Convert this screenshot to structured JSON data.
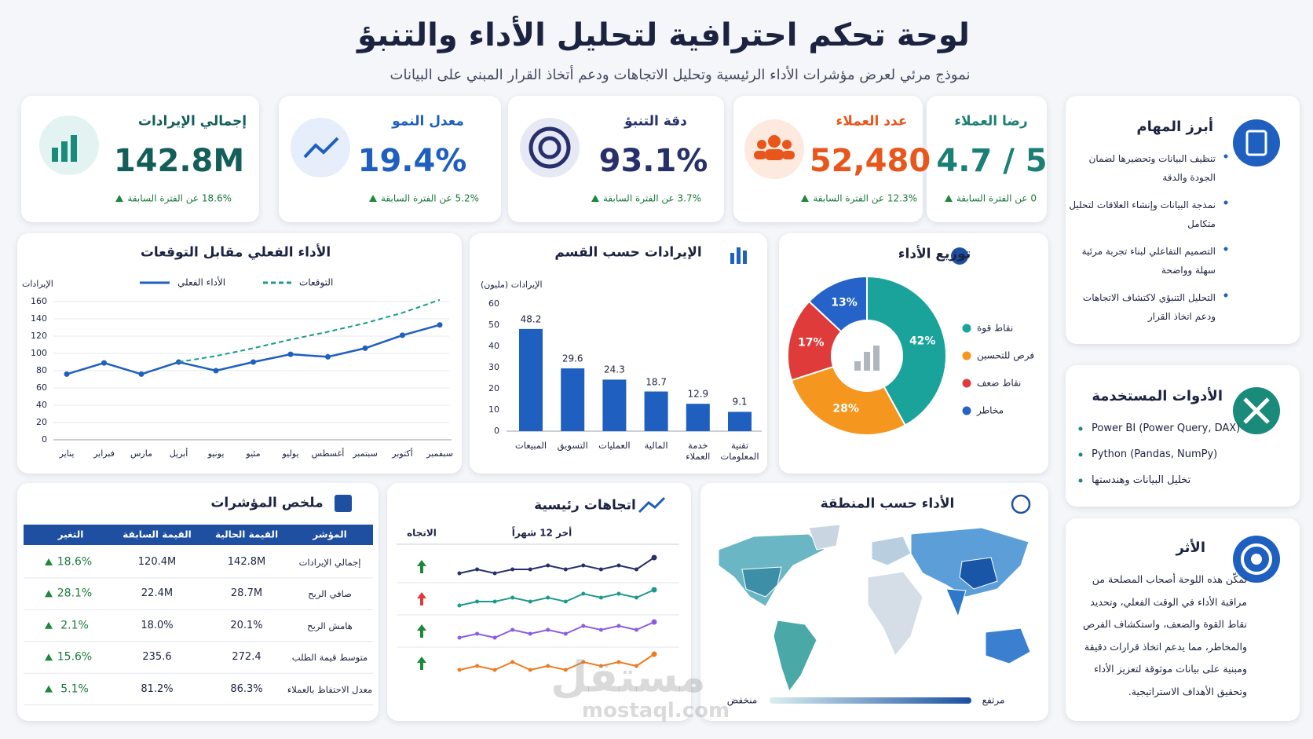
{
  "header": {
    "title": "لوحة تحكم احترافية لتحليل الأداء والتنبؤ",
    "subtitle": "نموذج مرئي لعرض مؤشرات الأداء الرئيسية وتحليل الاتجاهات ودعم أتخاذ القرار المبني على البيانات"
  },
  "kpis": [
    {
      "title": "إجمالي الإيرادات",
      "value": "142.8M",
      "change": "18.6% عن الفترة السابقة",
      "color": "#145e5a"
    },
    {
      "title": "معدل النمو",
      "value": "19.4%",
      "change": "5.2% عن الفترة السابقة",
      "color": "#1e5fbf"
    },
    {
      "title": "دقة التنبؤ",
      "value": "93.1%",
      "change": "3.7% عن الفترة السابقة",
      "color": "#27306b"
    },
    {
      "title": "عدد العملاء",
      "value": "52,480",
      "change": "12.3% عن الفترة السابقة",
      "color": "#e8561c"
    },
    {
      "title": "رضا العملاء",
      "value": "4.7 / 5",
      "change": "0 عن الفترة السابقة",
      "color": "#1a7f74"
    }
  ],
  "chart_data": [
    {
      "type": "line",
      "title": "الأداء الفعلي مقابل التوقعات",
      "y_label": "الإيرادات",
      "categories": [
        "يناير",
        "فبراير",
        "مارس",
        "أبريل",
        "يونيو",
        "مئيو",
        "يوليو",
        "أغسطس",
        "سبتمبر",
        "أكتوبر",
        "سبفمبر"
      ],
      "series": [
        {
          "name": "الأداء الفعلي",
          "color": "#1e5fbf",
          "dashed": false,
          "values": [
            76,
            89,
            76,
            90,
            80,
            90,
            99,
            96,
            106,
            121,
            133
          ]
        },
        {
          "name": "التوقعات",
          "color": "#1a9b8a",
          "dashed": true,
          "values": [
            null,
            null,
            null,
            90,
            97,
            106,
            116,
            125,
            135,
            147,
            162
          ]
        }
      ],
      "ylim": [
        0,
        160
      ],
      "yticks": [
        0,
        20,
        40,
        60,
        80,
        100,
        120,
        140,
        160
      ],
      "grid": true
    },
    {
      "type": "bar",
      "title": "الإيرادات حسب القسم",
      "y_label": "الإيرادات (مليون)",
      "categories": [
        "المبيعات",
        "التسويق",
        "العمليات",
        "المالية",
        "خدمة العملاء",
        "تقنية المعلومات"
      ],
      "values": [
        48.2,
        29.6,
        24.3,
        18.7,
        12.9,
        9.1
      ],
      "color": "#1e5fbf",
      "ylim": [
        0,
        60
      ],
      "yticks": [
        0,
        10,
        20,
        30,
        40,
        50,
        60
      ],
      "grid": false
    },
    {
      "type": "pie",
      "title": "توزيع الأداء",
      "categories": [
        "نقاط قوة",
        "فرص للتحسين",
        "نقاط ضعف",
        "مخاطر"
      ],
      "values": [
        42,
        28,
        17,
        13
      ],
      "value_labels": [
        "42%",
        "28%",
        "17%",
        "13%"
      ],
      "colors": [
        "#1aa39a",
        "#f5961e",
        "#e03b3b",
        "#2563c9"
      ]
    },
    {
      "type": "sparkline",
      "title": "اتجاهات رئيسية",
      "subtitle": "أخر 12 شهراً",
      "direction_label": "الاتجاه",
      "ylim": [
        2,
        8
      ],
      "series": [
        {
          "color": "#27306b",
          "arrow_color": "#1a8a3a",
          "values": [
            3,
            4,
            3,
            4,
            4,
            5,
            4,
            5,
            4,
            5,
            4,
            7
          ]
        },
        {
          "color": "#1a9b8a",
          "arrow_color": "#e03b3b",
          "values": [
            3,
            4,
            4,
            5,
            4,
            5,
            4,
            6,
            5,
            6,
            5,
            7
          ]
        },
        {
          "color": "#8a5ce6",
          "arrow_color": "#1a8a3a",
          "values": [
            3,
            4,
            3,
            5,
            4,
            5,
            4,
            6,
            5,
            6,
            5,
            7
          ]
        },
        {
          "color": "#f07a1e",
          "arrow_color": "#1a8a3a",
          "values": [
            3,
            4,
            3,
            5,
            3,
            4,
            3,
            5,
            4,
            5,
            4,
            7
          ]
        }
      ]
    }
  ],
  "table": {
    "title": "ملخص المؤشرات",
    "columns": [
      "المؤشر",
      "القيمة الحالية",
      "القيمة السابقة",
      "التغير"
    ],
    "rows": [
      [
        "إجمالي الإيرادات",
        "142.8M",
        "120.4M",
        "18.6%"
      ],
      [
        "صافي الربح",
        "28.7M",
        "22.4M",
        "28.1%"
      ],
      [
        "هامش الربح",
        "20.1%",
        "18.0%",
        "2.1%"
      ],
      [
        "متوسط قيمة الطلب",
        "272.4",
        "235.6",
        "15.6%"
      ],
      [
        "معدل الاحتفاظ بالعملاء",
        "86.3%",
        "81.2%",
        "5.1%"
      ]
    ]
  },
  "map": {
    "title": "الأداء حسب المنطقة",
    "legend_low": "منخفض",
    "legend_high": "مرتفع"
  },
  "tasks": {
    "title": "أبرز المهام",
    "items": [
      "تنظيف البيانات وتحضيرها لضمان الجودة والدقة",
      "نمذجة البيانات وإنشاء العلاقات لتحليل متكامل",
      "التصميم التفاعلي لبناء تجربة مرئية سهلة وواضحة",
      "التحليل التنبؤي لاكتشاف الاتجاهات ودعم اتخاذ القرار"
    ]
  },
  "tools": {
    "title": "الأدوات المستخدمة",
    "items": [
      "Power BI (Power Query, DAX)",
      "Python (Pandas, NumPy)",
      "تخليل البيانات وهندستها"
    ]
  },
  "impact": {
    "title": "الأثر",
    "text": "تمكّن هذه اللوحة أصحاب المصلحة من مراقبة الأداء في الوقت الفعلي، وتحديد نقاط القوة والضعف، واستكشاف الفرص والمخاطر، مما يدعم اتخاذ قرارات دقيقة ومبنية على بيانات موثوقة لتعزيز الأداء وتحقيق الأهداف الاستراتيجية."
  },
  "watermark": [
    "مستقل",
    "mostaql.com"
  ]
}
